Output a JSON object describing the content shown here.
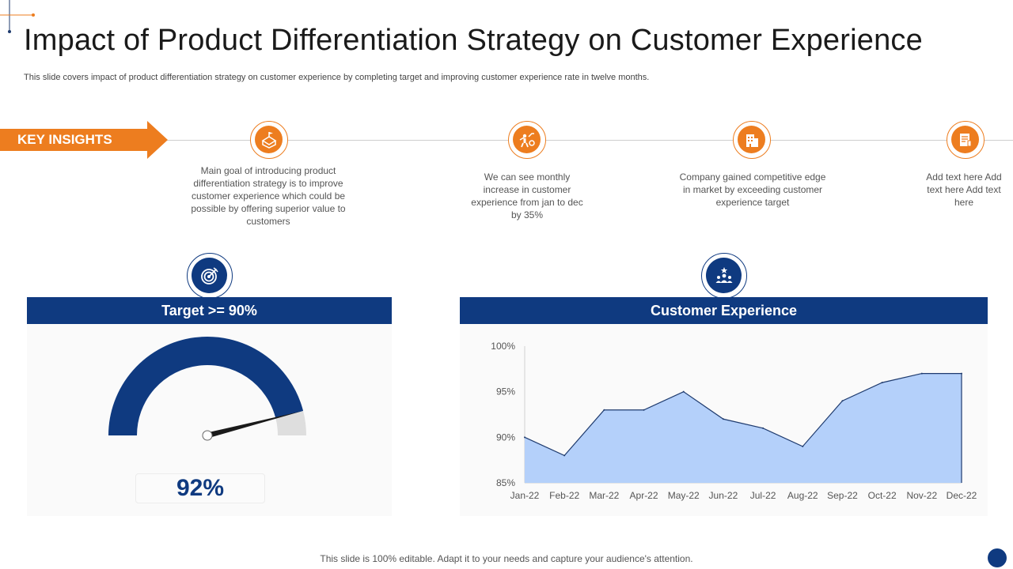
{
  "title": "Impact of Product Differentiation Strategy on Customer Experience",
  "subtitle": "This slide covers impact of product differentiation strategy on customer experience by completing target and improving customer experience rate in twelve months.",
  "key_insights_label": "KEY INSIGHTS",
  "insights": [
    {
      "icon": "roadmap-icon",
      "text": "Main goal of introducing product differentiation strategy is to improve customer experience which could be possible by offering superior value to customers"
    },
    {
      "icon": "growth-icon",
      "text": "We can see monthly increase in customer experience from jan to dec by 35%"
    },
    {
      "icon": "building-icon",
      "text": "Company gained competitive edge in market by exceeding customer experience target"
    },
    {
      "icon": "document-icon",
      "text": "Add text here Add text here Add text here"
    }
  ],
  "gauge_panel": {
    "header": "Target >= 90%",
    "value_label": "92%",
    "value": 92,
    "target": 90,
    "icon": "target-icon"
  },
  "chart_panel": {
    "header": "Customer Experience",
    "icon": "team-icon"
  },
  "chart_data": {
    "type": "area",
    "title": "Customer Experience",
    "categories": [
      "Jan-22",
      "Feb-22",
      "Mar-22",
      "Apr-22",
      "May-22",
      "Jun-22",
      "Jul-22",
      "Aug-22",
      "Sep-22",
      "Oct-22",
      "Nov-22",
      "Dec-22"
    ],
    "values": [
      90,
      88,
      93,
      93,
      95,
      92,
      91,
      89,
      94,
      96,
      97,
      97
    ],
    "ylim": [
      85,
      100
    ],
    "yticks": [
      "85%",
      "90%",
      "95%",
      "100%"
    ],
    "ytick_values": [
      85,
      90,
      95,
      100
    ],
    "fill_color": "#b4d0fa",
    "line_color": "#1f3b6e"
  },
  "footer": "This slide is 100% editable. Adapt it to your needs and capture your audience's attention.",
  "colors": {
    "accent": "#ed7d1f",
    "brand": "#0f3a80"
  }
}
